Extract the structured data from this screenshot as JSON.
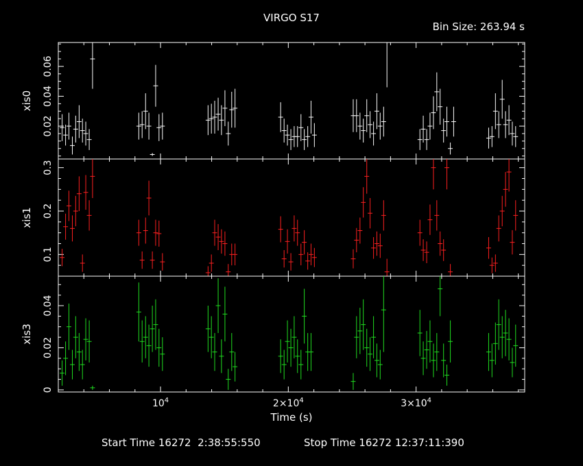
{
  "chart_data": {
    "type": "scatter",
    "title": "VIRGO S17",
    "bin_size_label": "Bin Size: 263.94 s",
    "xlabel": "Time (s)",
    "x_tick_labels": [
      "10^4",
      "2×10^4",
      "3×10^4"
    ],
    "x_ticks": [
      10000,
      20000,
      30000
    ],
    "xlim": [
      2000,
      38500
    ],
    "grid": false,
    "footer": {
      "start": "Start Time 16272  2:38:55:550",
      "stop": "Stop Time 16272 12:37:11:390"
    },
    "panels": [
      {
        "ylabel": "xis0",
        "color": "#ffffff",
        "ylim": [
          -0.002,
          0.076
        ],
        "y_ticks": [
          0.02,
          0.04,
          0.06
        ],
        "y_tick_labels": [
          "0.02",
          "0.04",
          "0.06"
        ],
        "points": [
          [
            2300,
            0.019,
            0.009
          ],
          [
            2570,
            0.014,
            0.007
          ],
          [
            2830,
            0.02,
            0.009
          ],
          [
            3100,
            0.007,
            0.006
          ],
          [
            3360,
            0.018,
            0.009
          ],
          [
            3630,
            0.023,
            0.011
          ],
          [
            3890,
            0.017,
            0.008
          ],
          [
            4150,
            0.015,
            0.008
          ],
          [
            4420,
            0.011,
            0.007
          ],
          [
            4680,
            0.065,
            0.02
          ],
          [
            8300,
            0.02,
            0.009
          ],
          [
            8560,
            0.021,
            0.009
          ],
          [
            8830,
            0.03,
            0.012
          ],
          [
            9090,
            0.02,
            0.009
          ],
          [
            9360,
            0.001,
            0.001
          ],
          [
            9620,
            0.047,
            0.014
          ],
          [
            9880,
            0.019,
            0.009
          ],
          [
            10150,
            0.02,
            0.009
          ],
          [
            13720,
            0.024,
            0.01
          ],
          [
            13980,
            0.025,
            0.01
          ],
          [
            14240,
            0.026,
            0.011
          ],
          [
            14510,
            0.028,
            0.011
          ],
          [
            14770,
            0.024,
            0.01
          ],
          [
            15040,
            0.032,
            0.012
          ],
          [
            15300,
            0.015,
            0.008
          ],
          [
            15570,
            0.031,
            0.012
          ],
          [
            15830,
            0.032,
            0.013
          ],
          [
            19400,
            0.026,
            0.01
          ],
          [
            19670,
            0.017,
            0.008
          ],
          [
            19930,
            0.014,
            0.007
          ],
          [
            20200,
            0.011,
            0.007
          ],
          [
            20460,
            0.013,
            0.007
          ],
          [
            20720,
            0.013,
            0.007
          ],
          [
            20990,
            0.019,
            0.009
          ],
          [
            21250,
            0.011,
            0.007
          ],
          [
            21520,
            0.013,
            0.007
          ],
          [
            21780,
            0.026,
            0.011
          ],
          [
            22040,
            0.014,
            0.008
          ],
          [
            25080,
            0.027,
            0.011
          ],
          [
            25340,
            0.027,
            0.011
          ],
          [
            25610,
            0.02,
            0.009
          ],
          [
            25870,
            0.017,
            0.008
          ],
          [
            26140,
            0.027,
            0.011
          ],
          [
            26400,
            0.021,
            0.009
          ],
          [
            26670,
            0.015,
            0.008
          ],
          [
            26930,
            0.03,
            0.012
          ],
          [
            27190,
            0.02,
            0.009
          ],
          [
            27460,
            0.023,
            0.01
          ],
          [
            27720,
            0.076,
            0.03
          ],
          [
            30300,
            0.011,
            0.007
          ],
          [
            30560,
            0.018,
            0.009
          ],
          [
            30830,
            0.011,
            0.007
          ],
          [
            31090,
            0.02,
            0.009
          ],
          [
            31360,
            0.029,
            0.011
          ],
          [
            31620,
            0.043,
            0.013
          ],
          [
            31880,
            0.033,
            0.012
          ],
          [
            32150,
            0.017,
            0.008
          ],
          [
            32410,
            0.023,
            0.01
          ],
          [
            32680,
            0.005,
            0.004
          ],
          [
            32940,
            0.023,
            0.01
          ],
          [
            35680,
            0.012,
            0.007
          ],
          [
            35940,
            0.013,
            0.007
          ],
          [
            36210,
            0.03,
            0.012
          ],
          [
            36470,
            0.021,
            0.009
          ],
          [
            36740,
            0.038,
            0.013
          ],
          [
            37000,
            0.021,
            0.009
          ],
          [
            37270,
            0.024,
            0.01
          ],
          [
            37530,
            0.015,
            0.008
          ],
          [
            37790,
            0.013,
            0.007
          ]
        ]
      },
      {
        "ylabel": "xis1",
        "color": "#ff2020",
        "ylim": [
          0.05,
          0.32
        ],
        "y_ticks": [
          0.1,
          0.2,
          0.3
        ],
        "y_tick_labels": [
          "0.1",
          "0.2",
          "0.3"
        ],
        "points": [
          [
            2300,
            0.093,
            0.02
          ],
          [
            2570,
            0.164,
            0.03
          ],
          [
            2830,
            0.212,
            0.035
          ],
          [
            3100,
            0.16,
            0.03
          ],
          [
            3360,
            0.2,
            0.035
          ],
          [
            3630,
            0.24,
            0.04
          ],
          [
            3890,
            0.08,
            0.02
          ],
          [
            4150,
            0.243,
            0.04
          ],
          [
            4420,
            0.19,
            0.035
          ],
          [
            4680,
            0.28,
            0.05
          ],
          [
            8300,
            0.15,
            0.03
          ],
          [
            8560,
            0.087,
            0.02
          ],
          [
            8830,
            0.155,
            0.03
          ],
          [
            9090,
            0.23,
            0.04
          ],
          [
            9360,
            0.087,
            0.02
          ],
          [
            9620,
            0.15,
            0.03
          ],
          [
            9880,
            0.148,
            0.03
          ],
          [
            10150,
            0.083,
            0.02
          ],
          [
            13720,
            0.058,
            0.015
          ],
          [
            13980,
            0.08,
            0.02
          ],
          [
            14240,
            0.15,
            0.03
          ],
          [
            14510,
            0.14,
            0.03
          ],
          [
            14770,
            0.13,
            0.028
          ],
          [
            15040,
            0.125,
            0.028
          ],
          [
            15300,
            0.06,
            0.018
          ],
          [
            15570,
            0.1,
            0.025
          ],
          [
            15830,
            0.1,
            0.025
          ],
          [
            19400,
            0.158,
            0.03
          ],
          [
            19670,
            0.09,
            0.02
          ],
          [
            19930,
            0.13,
            0.028
          ],
          [
            20200,
            0.083,
            0.02
          ],
          [
            20460,
            0.16,
            0.03
          ],
          [
            20720,
            0.15,
            0.03
          ],
          [
            20990,
            0.1,
            0.025
          ],
          [
            21250,
            0.128,
            0.028
          ],
          [
            21520,
            0.085,
            0.02
          ],
          [
            21780,
            0.1,
            0.025
          ],
          [
            22040,
            0.093,
            0.022
          ],
          [
            25080,
            0.09,
            0.022
          ],
          [
            25340,
            0.133,
            0.028
          ],
          [
            25610,
            0.155,
            0.03
          ],
          [
            25870,
            0.22,
            0.035
          ],
          [
            26140,
            0.28,
            0.04
          ],
          [
            26400,
            0.195,
            0.035
          ],
          [
            26670,
            0.115,
            0.025
          ],
          [
            26930,
            0.125,
            0.028
          ],
          [
            27190,
            0.12,
            0.028
          ],
          [
            27460,
            0.19,
            0.035
          ],
          [
            27720,
            0.06,
            0.03
          ],
          [
            30300,
            0.15,
            0.03
          ],
          [
            30560,
            0.11,
            0.025
          ],
          [
            30830,
            0.105,
            0.025
          ],
          [
            31090,
            0.18,
            0.035
          ],
          [
            31360,
            0.3,
            0.05
          ],
          [
            31620,
            0.19,
            0.035
          ],
          [
            31880,
            0.125,
            0.028
          ],
          [
            32150,
            0.11,
            0.025
          ],
          [
            32410,
            0.3,
            0.05
          ],
          [
            32680,
            0.06,
            0.018
          ],
          [
            35680,
            0.115,
            0.025
          ],
          [
            35940,
            0.075,
            0.018
          ],
          [
            36210,
            0.08,
            0.02
          ],
          [
            36470,
            0.16,
            0.03
          ],
          [
            36740,
            0.2,
            0.035
          ],
          [
            37000,
            0.25,
            0.04
          ],
          [
            37270,
            0.29,
            0.045
          ],
          [
            37530,
            0.128,
            0.028
          ],
          [
            37790,
            0.19,
            0.035
          ]
        ]
      },
      {
        "ylabel": "xis3",
        "color": "#20e020",
        "ylim": [
          -0.001,
          0.054
        ],
        "y_ticks": [
          0,
          0.02,
          0.04
        ],
        "y_tick_labels": [
          "0",
          "0.02",
          "0.04"
        ],
        "points": [
          [
            2300,
            0.008,
            0.006
          ],
          [
            2570,
            0.015,
            0.008
          ],
          [
            2830,
            0.03,
            0.011
          ],
          [
            3100,
            0.012,
            0.007
          ],
          [
            3360,
            0.025,
            0.01
          ],
          [
            3630,
            0.018,
            0.009
          ],
          [
            3890,
            0.012,
            0.007
          ],
          [
            4150,
            0.024,
            0.01
          ],
          [
            4420,
            0.023,
            0.01
          ],
          [
            4680,
            0.001,
            0.001
          ],
          [
            8300,
            0.037,
            0.014
          ],
          [
            8560,
            0.023,
            0.01
          ],
          [
            8830,
            0.025,
            0.01
          ],
          [
            9090,
            0.021,
            0.01
          ],
          [
            9360,
            0.029,
            0.011
          ],
          [
            9620,
            0.031,
            0.012
          ],
          [
            9880,
            0.02,
            0.009
          ],
          [
            10150,
            0.017,
            0.008
          ],
          [
            13720,
            0.029,
            0.011
          ],
          [
            13980,
            0.025,
            0.01
          ],
          [
            14240,
            0.018,
            0.009
          ],
          [
            14510,
            0.04,
            0.013
          ],
          [
            14770,
            0.016,
            0.008
          ],
          [
            15040,
            0.036,
            0.013
          ],
          [
            15300,
            0.005,
            0.005
          ],
          [
            15570,
            0.018,
            0.009
          ],
          [
            15830,
            0.011,
            0.007
          ],
          [
            19400,
            0.016,
            0.008
          ],
          [
            19670,
            0.012,
            0.007
          ],
          [
            19930,
            0.023,
            0.01
          ],
          [
            20200,
            0.02,
            0.009
          ],
          [
            20460,
            0.025,
            0.01
          ],
          [
            20720,
            0.016,
            0.008
          ],
          [
            20990,
            0.012,
            0.007
          ],
          [
            21250,
            0.035,
            0.013
          ],
          [
            21520,
            0.018,
            0.009
          ],
          [
            21780,
            0.018,
            0.009
          ],
          [
            25080,
            0.004,
            0.004
          ],
          [
            25340,
            0.025,
            0.01
          ],
          [
            25610,
            0.028,
            0.011
          ],
          [
            25870,
            0.031,
            0.012
          ],
          [
            26140,
            0.02,
            0.009
          ],
          [
            26400,
            0.017,
            0.008
          ],
          [
            26670,
            0.025,
            0.01
          ],
          [
            26930,
            0.014,
            0.008
          ],
          [
            27190,
            0.012,
            0.007
          ],
          [
            27460,
            0.038,
            0.02
          ],
          [
            30300,
            0.027,
            0.011
          ],
          [
            30560,
            0.015,
            0.008
          ],
          [
            30830,
            0.019,
            0.009
          ],
          [
            31090,
            0.023,
            0.01
          ],
          [
            31360,
            0.014,
            0.008
          ],
          [
            31620,
            0.018,
            0.009
          ],
          [
            31880,
            0.048,
            0.013
          ],
          [
            32150,
            0.014,
            0.008
          ],
          [
            32410,
            0.007,
            0.005
          ],
          [
            32680,
            0.023,
            0.01
          ],
          [
            35680,
            0.018,
            0.009
          ],
          [
            35940,
            0.014,
            0.008
          ],
          [
            36210,
            0.022,
            0.01
          ],
          [
            36470,
            0.031,
            0.012
          ],
          [
            36740,
            0.025,
            0.01
          ],
          [
            37000,
            0.027,
            0.011
          ],
          [
            37270,
            0.024,
            0.01
          ],
          [
            37530,
            0.013,
            0.007
          ],
          [
            37790,
            0.021,
            0.01
          ]
        ]
      }
    ]
  }
}
